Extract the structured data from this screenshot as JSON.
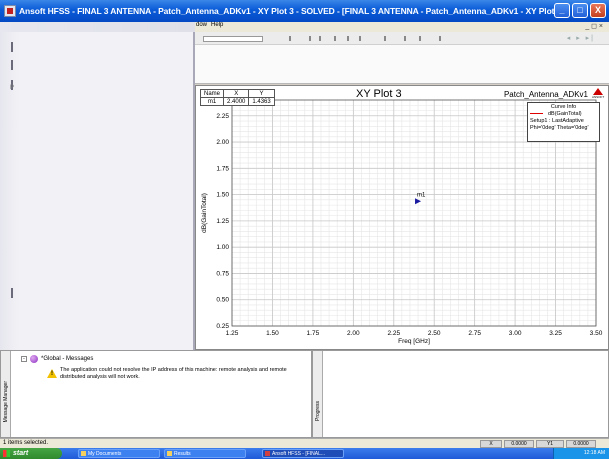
{
  "window": {
    "title": "Ansoft HFSS - FINAL 3 ANTENNA - Patch_Antenna_ADKv1 - XY Plot 3 - SOLVED - [FINAL 3 ANTENNA - Patch_Antenna_ADKv1 - XY Plot 3]",
    "minimize": "_",
    "maximize": "□",
    "close": "X"
  },
  "menu": {
    "visible_items": [
      "dow",
      "Help"
    ],
    "mdi_controls": "_ ◻ ×"
  },
  "left_panel": {
    "letters": [
      "P"
    ]
  },
  "toolbar": {
    "nav": "◂ ▸ ▸|"
  },
  "plot": {
    "title": "XY Plot 3",
    "project": "Patch_Antenna_ADKv1",
    "logo_text": "ANSOFT",
    "marker_table": {
      "headers": [
        "Name",
        "X",
        "Y"
      ],
      "rows": [
        [
          "m1",
          "2.4000",
          "1.4363"
        ]
      ]
    },
    "curve_info": {
      "header": "Curve Info",
      "trace_name": "dB(GainTotal)",
      "setup": "Setup1 : LastAdaptive",
      "params": "Phi='0deg' Theta='0deg'",
      "color": "#e00000"
    },
    "marker_label": "m1",
    "marker_color": "#1a1aa0"
  },
  "chart_data": {
    "type": "scatter",
    "title": "XY Plot 3",
    "xlabel": "Freq [GHz]",
    "ylabel": "dB(GainTotal)",
    "xlim": [
      1.25,
      3.5
    ],
    "ylim": [
      0.25,
      2.4
    ],
    "x_ticks": [
      "1.25",
      "1.50",
      "1.75",
      "2.00",
      "2.25",
      "2.50",
      "2.75",
      "3.00",
      "3.25",
      "3.50"
    ],
    "y_ticks": [
      "0.25",
      "0.50",
      "0.75",
      "1.00",
      "1.25",
      "1.50",
      "1.75",
      "2.00",
      "2.25"
    ],
    "grid": true,
    "series": [
      {
        "name": "dB(GainTotal)",
        "x": [
          2.4
        ],
        "y": [
          1.4363
        ]
      }
    ],
    "annotations": [
      {
        "label": "m1",
        "x": 2.4,
        "y": 1.4363
      }
    ]
  },
  "messages": {
    "panel_label": "Message Manager",
    "expander": "-",
    "global": "*Global - Messages",
    "warning": "The application could not resolve the IP address of this machine: remote analysis and remote distributed analysis will not work.",
    "warning_glyph": "!"
  },
  "progress": {
    "panel_label": "Progress"
  },
  "status": {
    "text": "1 items selected.",
    "cells": [
      "X",
      "0.0000",
      "Y1",
      "0.0000"
    ]
  },
  "taskbar": {
    "start": "start",
    "items": [
      "My Documents",
      "Results",
      "Ansoft HFSS - [FINAL..."
    ],
    "clock": "12:18 AM"
  }
}
